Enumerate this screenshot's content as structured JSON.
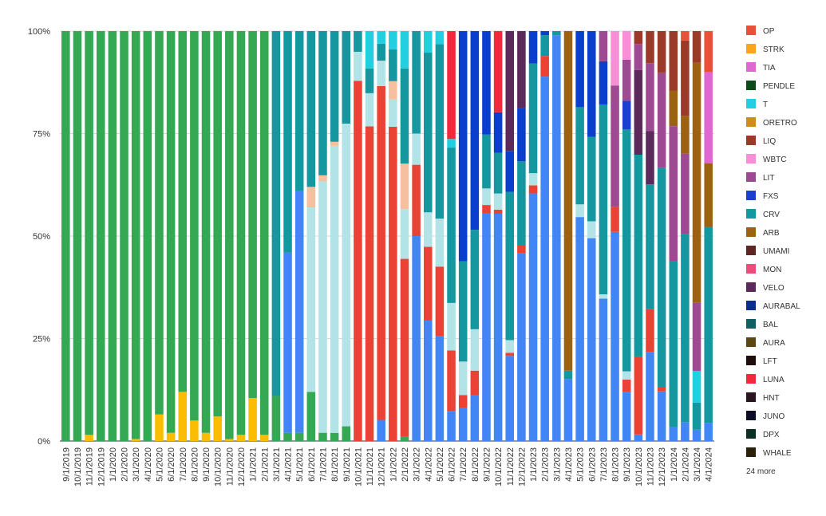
{
  "chart_data": {
    "type": "bar",
    "stacked_percent": true,
    "title": "",
    "xlabel": "",
    "ylabel": "",
    "ylim": [
      0,
      100
    ],
    "y_ticks": [
      "0%",
      "25%",
      "50%",
      "75%",
      "100%"
    ],
    "grid": true,
    "legend_position": "right",
    "legend_more": "24 more",
    "categories": [
      "9/1/2019",
      "10/1/2019",
      "11/1/2019",
      "12/1/2019",
      "1/1/2020",
      "2/1/2020",
      "3/1/2020",
      "4/1/2020",
      "5/1/2020",
      "6/1/2020",
      "7/1/2020",
      "8/1/2020",
      "9/1/2020",
      "10/1/2020",
      "11/1/2020",
      "12/1/2020",
      "1/1/2021",
      "2/1/2021",
      "3/1/2021",
      "4/1/2021",
      "5/1/2021",
      "6/1/2021",
      "7/1/2021",
      "8/1/2021",
      "9/1/2021",
      "10/1/2021",
      "11/1/2021",
      "12/1/2021",
      "1/1/2022",
      "2/1/2022",
      "3/1/2022",
      "4/1/2022",
      "5/1/2022",
      "6/1/2022",
      "7/1/2022",
      "8/1/2022",
      "9/1/2022",
      "10/1/2022",
      "11/1/2022",
      "12/1/2022",
      "1/1/2023",
      "2/1/2023",
      "3/1/2023",
      "4/1/2023",
      "5/1/2023",
      "6/1/2023",
      "7/1/2023",
      "8/1/2023",
      "9/1/2023",
      "10/1/2023",
      "11/1/2023",
      "12/1/2023",
      "1/1/2024",
      "2/1/2024",
      "3/1/2024",
      "4/1/2024"
    ],
    "legend": [
      {
        "name": "OP",
        "color": "#e8503a"
      },
      {
        "name": "STRK",
        "color": "#f9a61a"
      },
      {
        "name": "TIA",
        "color": "#de68d1"
      },
      {
        "name": "PENDLE",
        "color": "#0b4b1a"
      },
      {
        "name": "T",
        "color": "#22cfe0"
      },
      {
        "name": "ORETRO",
        "color": "#d18b17"
      },
      {
        "name": "LIQ",
        "color": "#9c3a2a"
      },
      {
        "name": "WBTC",
        "color": "#f68fd6"
      },
      {
        "name": "LIT",
        "color": "#9d4a93"
      },
      {
        "name": "FXS",
        "color": "#1b3fd1"
      },
      {
        "name": "CRV",
        "color": "#15979f"
      },
      {
        "name": "ARB",
        "color": "#9a6211"
      },
      {
        "name": "UMAMI",
        "color": "#5d2523"
      },
      {
        "name": "MON",
        "color": "#ef4b7a"
      },
      {
        "name": "VELO",
        "color": "#5b2a5a"
      },
      {
        "name": "AURABAL",
        "color": "#0c2d8a"
      },
      {
        "name": "BAL",
        "color": "#0e6160"
      },
      {
        "name": "AURA",
        "color": "#5c4710"
      },
      {
        "name": "LFT",
        "color": "#1f0c0c"
      },
      {
        "name": "LUNA",
        "color": "#f2293c"
      },
      {
        "name": "HNT",
        "color": "#2a1420"
      },
      {
        "name": "JUNO",
        "color": "#0c0d24"
      },
      {
        "name": "DPX",
        "color": "#0c2f24"
      },
      {
        "name": "WHALE",
        "color": "#2a200a"
      }
    ],
    "other_series_colors": {
      "CVX": "#34a853",
      "YFI_gold": "#fbbc04",
      "CAKE_blue": "#4285f4",
      "LUNA_red": "#ea4335",
      "light_cyan": "#b2e3e6",
      "peach": "#f6c0a0",
      "mid_blue": "#0a3fce"
    },
    "series": [
      {
        "color": "#fbbc04",
        "values": [
          0,
          0,
          1.5,
          0,
          0,
          0,
          0.5,
          0,
          6.5,
          2,
          12,
          5,
          2,
          6,
          0.5,
          1.5,
          10.5,
          1.5,
          0,
          0,
          0,
          0,
          0,
          0,
          0,
          0,
          0,
          0,
          0,
          0,
          0,
          0,
          0,
          0,
          0,
          0,
          0,
          0,
          0,
          0,
          0,
          0,
          0,
          0,
          0,
          0,
          0,
          0,
          0,
          0,
          0,
          0,
          0,
          0,
          0,
          0
        ]
      },
      {
        "color": "#34a853",
        "values": [
          100,
          100,
          98.5,
          100,
          100,
          100,
          99.5,
          100,
          93.5,
          98,
          88,
          95,
          98,
          94,
          99.5,
          98.5,
          89.5,
          98.5,
          11,
          2,
          2,
          12,
          2,
          2,
          3.5,
          0,
          0,
          0,
          0,
          1,
          0,
          0,
          0,
          0,
          0,
          0,
          0,
          0,
          0,
          0,
          0,
          0,
          0,
          0,
          0,
          0,
          0,
          0,
          0,
          0,
          0,
          0,
          0,
          0,
          0,
          0
        ]
      },
      {
        "color": "#4285f4",
        "values": [
          0,
          0,
          0,
          0,
          0,
          0,
          0,
          0,
          0,
          0,
          0,
          0,
          0,
          0,
          0,
          0,
          0,
          0,
          0,
          44,
          59,
          0,
          0,
          0,
          0,
          0,
          0,
          5,
          0,
          0,
          46,
          28,
          24,
          7,
          8,
          11,
          55,
          56,
          27,
          49,
          61,
          88,
          98,
          15,
          53,
          48,
          33,
          50,
          12,
          2,
          25,
          12,
          3.5,
          4,
          2.5,
          4
        ]
      },
      {
        "color": "#ea4335",
        "values": [
          0,
          0,
          0,
          0,
          0,
          0,
          0,
          0,
          0,
          0,
          0,
          0,
          0,
          0,
          0,
          0,
          0,
          0,
          0,
          0,
          0,
          0,
          0,
          0,
          0,
          87,
          76,
          79,
          69,
          43,
          16,
          17,
          16,
          14,
          3,
          6,
          2,
          1,
          1,
          2,
          2,
          5,
          0,
          0,
          0,
          0,
          0,
          6,
          3,
          24,
          12,
          1,
          0,
          0,
          0,
          0
        ]
      },
      {
        "color": "#b2e3e6",
        "values": [
          0,
          0,
          0,
          0,
          0,
          0,
          0,
          0,
          0,
          0,
          0,
          0,
          0,
          0,
          0,
          0,
          0,
          0,
          0,
          0,
          0,
          45,
          61,
          70,
          72,
          7,
          8,
          6,
          6,
          12,
          7,
          8,
          11,
          11,
          8,
          10,
          4,
          4,
          4,
          0,
          3,
          0,
          0,
          0,
          3,
          4,
          1,
          0,
          2,
          0,
          0,
          0,
          0,
          0,
          0,
          0
        ]
      },
      {
        "color": "#f6c0a0",
        "values": [
          0,
          0,
          0,
          0,
          0,
          0,
          0,
          0,
          0,
          0,
          0,
          0,
          0,
          0,
          0,
          0,
          0,
          0,
          0,
          0,
          0,
          5,
          1.5,
          1,
          0,
          0,
          0,
          0,
          4,
          11,
          0,
          0,
          0,
          0,
          0,
          0,
          0,
          0,
          0,
          0,
          0,
          0,
          0,
          0,
          0,
          0,
          0,
          0,
          0,
          0,
          0,
          0,
          0,
          0,
          0,
          0
        ]
      },
      {
        "color": "#15979f",
        "values": [
          0,
          0,
          0,
          0,
          0,
          0,
          0,
          0,
          0,
          0,
          0,
          0,
          0,
          0,
          0,
          0,
          0,
          0,
          89,
          54,
          39,
          38,
          35,
          27,
          22,
          5,
          6,
          4,
          7,
          23,
          23,
          37,
          40,
          36,
          24,
          24,
          13,
          10,
          47,
          22,
          27,
          5,
          1,
          2,
          23,
          20,
          44,
          0,
          59,
          62,
          35,
          53,
          42,
          40,
          6,
          43
        ]
      },
      {
        "color": "#1b3fd1",
        "values": [
          0,
          0,
          0,
          0,
          0,
          0,
          0,
          0,
          0,
          0,
          0,
          0,
          0,
          0,
          0,
          0,
          0,
          0,
          0,
          0,
          0,
          0,
          0,
          0,
          0,
          0,
          0,
          0,
          0,
          0,
          0,
          0,
          0,
          0,
          0,
          0,
          0,
          0,
          0,
          0,
          0,
          0,
          0,
          0,
          0,
          0,
          0,
          0,
          7,
          0,
          0,
          0,
          0,
          0,
          0,
          0
        ]
      },
      {
        "color": "#22cfe0",
        "values": [
          0,
          0,
          0,
          0,
          0,
          0,
          0,
          0,
          0,
          0,
          0,
          0,
          0,
          0,
          0,
          0,
          0,
          0,
          0,
          0,
          0,
          0,
          0,
          0,
          0,
          0,
          9,
          3,
          4,
          9,
          0,
          5,
          3,
          2,
          0,
          0,
          0,
          0,
          0,
          0,
          0,
          0,
          0,
          0,
          0,
          0,
          0,
          0,
          0,
          0,
          0,
          0,
          0,
          0,
          7,
          0
        ]
      },
      {
        "color": "#0a3fce",
        "values": [
          0,
          0,
          0,
          0,
          0,
          0,
          0,
          0,
          0,
          0,
          0,
          0,
          0,
          0,
          0,
          0,
          0,
          0,
          0,
          0,
          0,
          0,
          0,
          0,
          0,
          0,
          0,
          0,
          0,
          0,
          0,
          0,
          0,
          0,
          55,
          48,
          25,
          10,
          13,
          14,
          8,
          1,
          0,
          0,
          18,
          25,
          10,
          0,
          0,
          0,
          0,
          0,
          0,
          0,
          0,
          0
        ]
      },
      {
        "color": "#f2293c",
        "values": [
          0,
          0,
          0,
          0,
          0,
          0,
          0,
          0,
          0,
          0,
          0,
          0,
          0,
          0,
          0,
          0,
          0,
          0,
          0,
          0,
          0,
          0,
          0,
          0,
          0,
          0,
          0,
          0,
          0,
          0,
          0,
          0,
          0,
          25,
          0,
          0,
          0,
          20,
          0,
          0,
          0,
          0,
          0,
          0,
          0,
          0,
          0,
          0,
          0,
          0,
          0,
          0,
          0,
          0,
          0,
          0
        ]
      },
      {
        "color": "#5b2a5a",
        "values": [
          0,
          0,
          0,
          0,
          0,
          0,
          0,
          0,
          0,
          0,
          0,
          0,
          0,
          0,
          0,
          0,
          0,
          0,
          0,
          0,
          0,
          0,
          0,
          0,
          0,
          0,
          0,
          0,
          0,
          0,
          0,
          0,
          0,
          0,
          0,
          0,
          0,
          0,
          38,
          20,
          0,
          0,
          0,
          0,
          0,
          0,
          0,
          0,
          0,
          26,
          15,
          0,
          0,
          0,
          0,
          0
        ]
      },
      {
        "color": "#9d4a93",
        "values": [
          0,
          0,
          0,
          0,
          0,
          0,
          0,
          0,
          0,
          0,
          0,
          0,
          0,
          0,
          0,
          0,
          0,
          0,
          0,
          0,
          0,
          0,
          0,
          0,
          0,
          0,
          0,
          0,
          0,
          0,
          0,
          0,
          0,
          0,
          0,
          0,
          0,
          0,
          0,
          0,
          0,
          0,
          0,
          0,
          0,
          0,
          7,
          29,
          10,
          8,
          19,
          23,
          34,
          17,
          15,
          0
        ]
      },
      {
        "color": "#f68fd6",
        "values": [
          0,
          0,
          0,
          0,
          0,
          0,
          0,
          0,
          0,
          0,
          0,
          0,
          0,
          0,
          0,
          0,
          0,
          0,
          0,
          0,
          0,
          0,
          0,
          0,
          0,
          0,
          0,
          0,
          0,
          0,
          0,
          0,
          0,
          0,
          0,
          0,
          0,
          0,
          0,
          0,
          0,
          0,
          0,
          0,
          0,
          0,
          0,
          13,
          7,
          0,
          0,
          0,
          0,
          0,
          0,
          0
        ]
      },
      {
        "color": "#9a6211",
        "values": [
          0,
          0,
          0,
          0,
          0,
          0,
          0,
          0,
          0,
          0,
          0,
          0,
          0,
          0,
          0,
          0,
          0,
          0,
          0,
          0,
          0,
          0,
          0,
          0,
          0,
          0,
          0,
          0,
          0,
          0,
          0,
          0,
          0,
          0,
          0,
          0,
          0,
          0,
          0,
          0,
          0,
          0,
          0,
          82,
          0,
          0,
          0,
          0,
          0,
          0,
          0,
          0,
          9,
          8,
          53,
          14
        ]
      },
      {
        "color": "#9c3a2a",
        "values": [
          0,
          0,
          0,
          0,
          0,
          0,
          0,
          0,
          0,
          0,
          0,
          0,
          0,
          0,
          0,
          0,
          0,
          0,
          0,
          0,
          0,
          0,
          0,
          0,
          0,
          0,
          0,
          0,
          0,
          0,
          0,
          0,
          0,
          0,
          0,
          0,
          0,
          0,
          0,
          0,
          0,
          0,
          0,
          0,
          0,
          0,
          0,
          0,
          0,
          4,
          9,
          10,
          15,
          16,
          7,
          0
        ]
      },
      {
        "color": "#de68d1",
        "values": [
          0,
          0,
          0,
          0,
          0,
          0,
          0,
          0,
          0,
          0,
          0,
          0,
          0,
          0,
          0,
          0,
          0,
          0,
          0,
          0,
          0,
          0,
          0,
          0,
          0,
          0,
          0,
          0,
          0,
          0,
          0,
          0,
          0,
          0,
          0,
          0,
          0,
          0,
          0,
          0,
          0,
          0,
          0,
          0,
          0,
          0,
          0,
          0,
          0,
          0,
          0,
          0,
          0,
          0,
          0,
          20
        ]
      },
      {
        "color": "#e8503a",
        "values": [
          0,
          0,
          0,
          0,
          0,
          0,
          0,
          0,
          0,
          0,
          0,
          0,
          0,
          0,
          0,
          0,
          0,
          0,
          0,
          0,
          0,
          0,
          0,
          0,
          0,
          0,
          0,
          0,
          0,
          0,
          0,
          0,
          0,
          0,
          0,
          0,
          0,
          0,
          0,
          0,
          0,
          0,
          0,
          0,
          0,
          0,
          0,
          0,
          0,
          0,
          0,
          0,
          0,
          2,
          0,
          9
        ]
      }
    ]
  }
}
